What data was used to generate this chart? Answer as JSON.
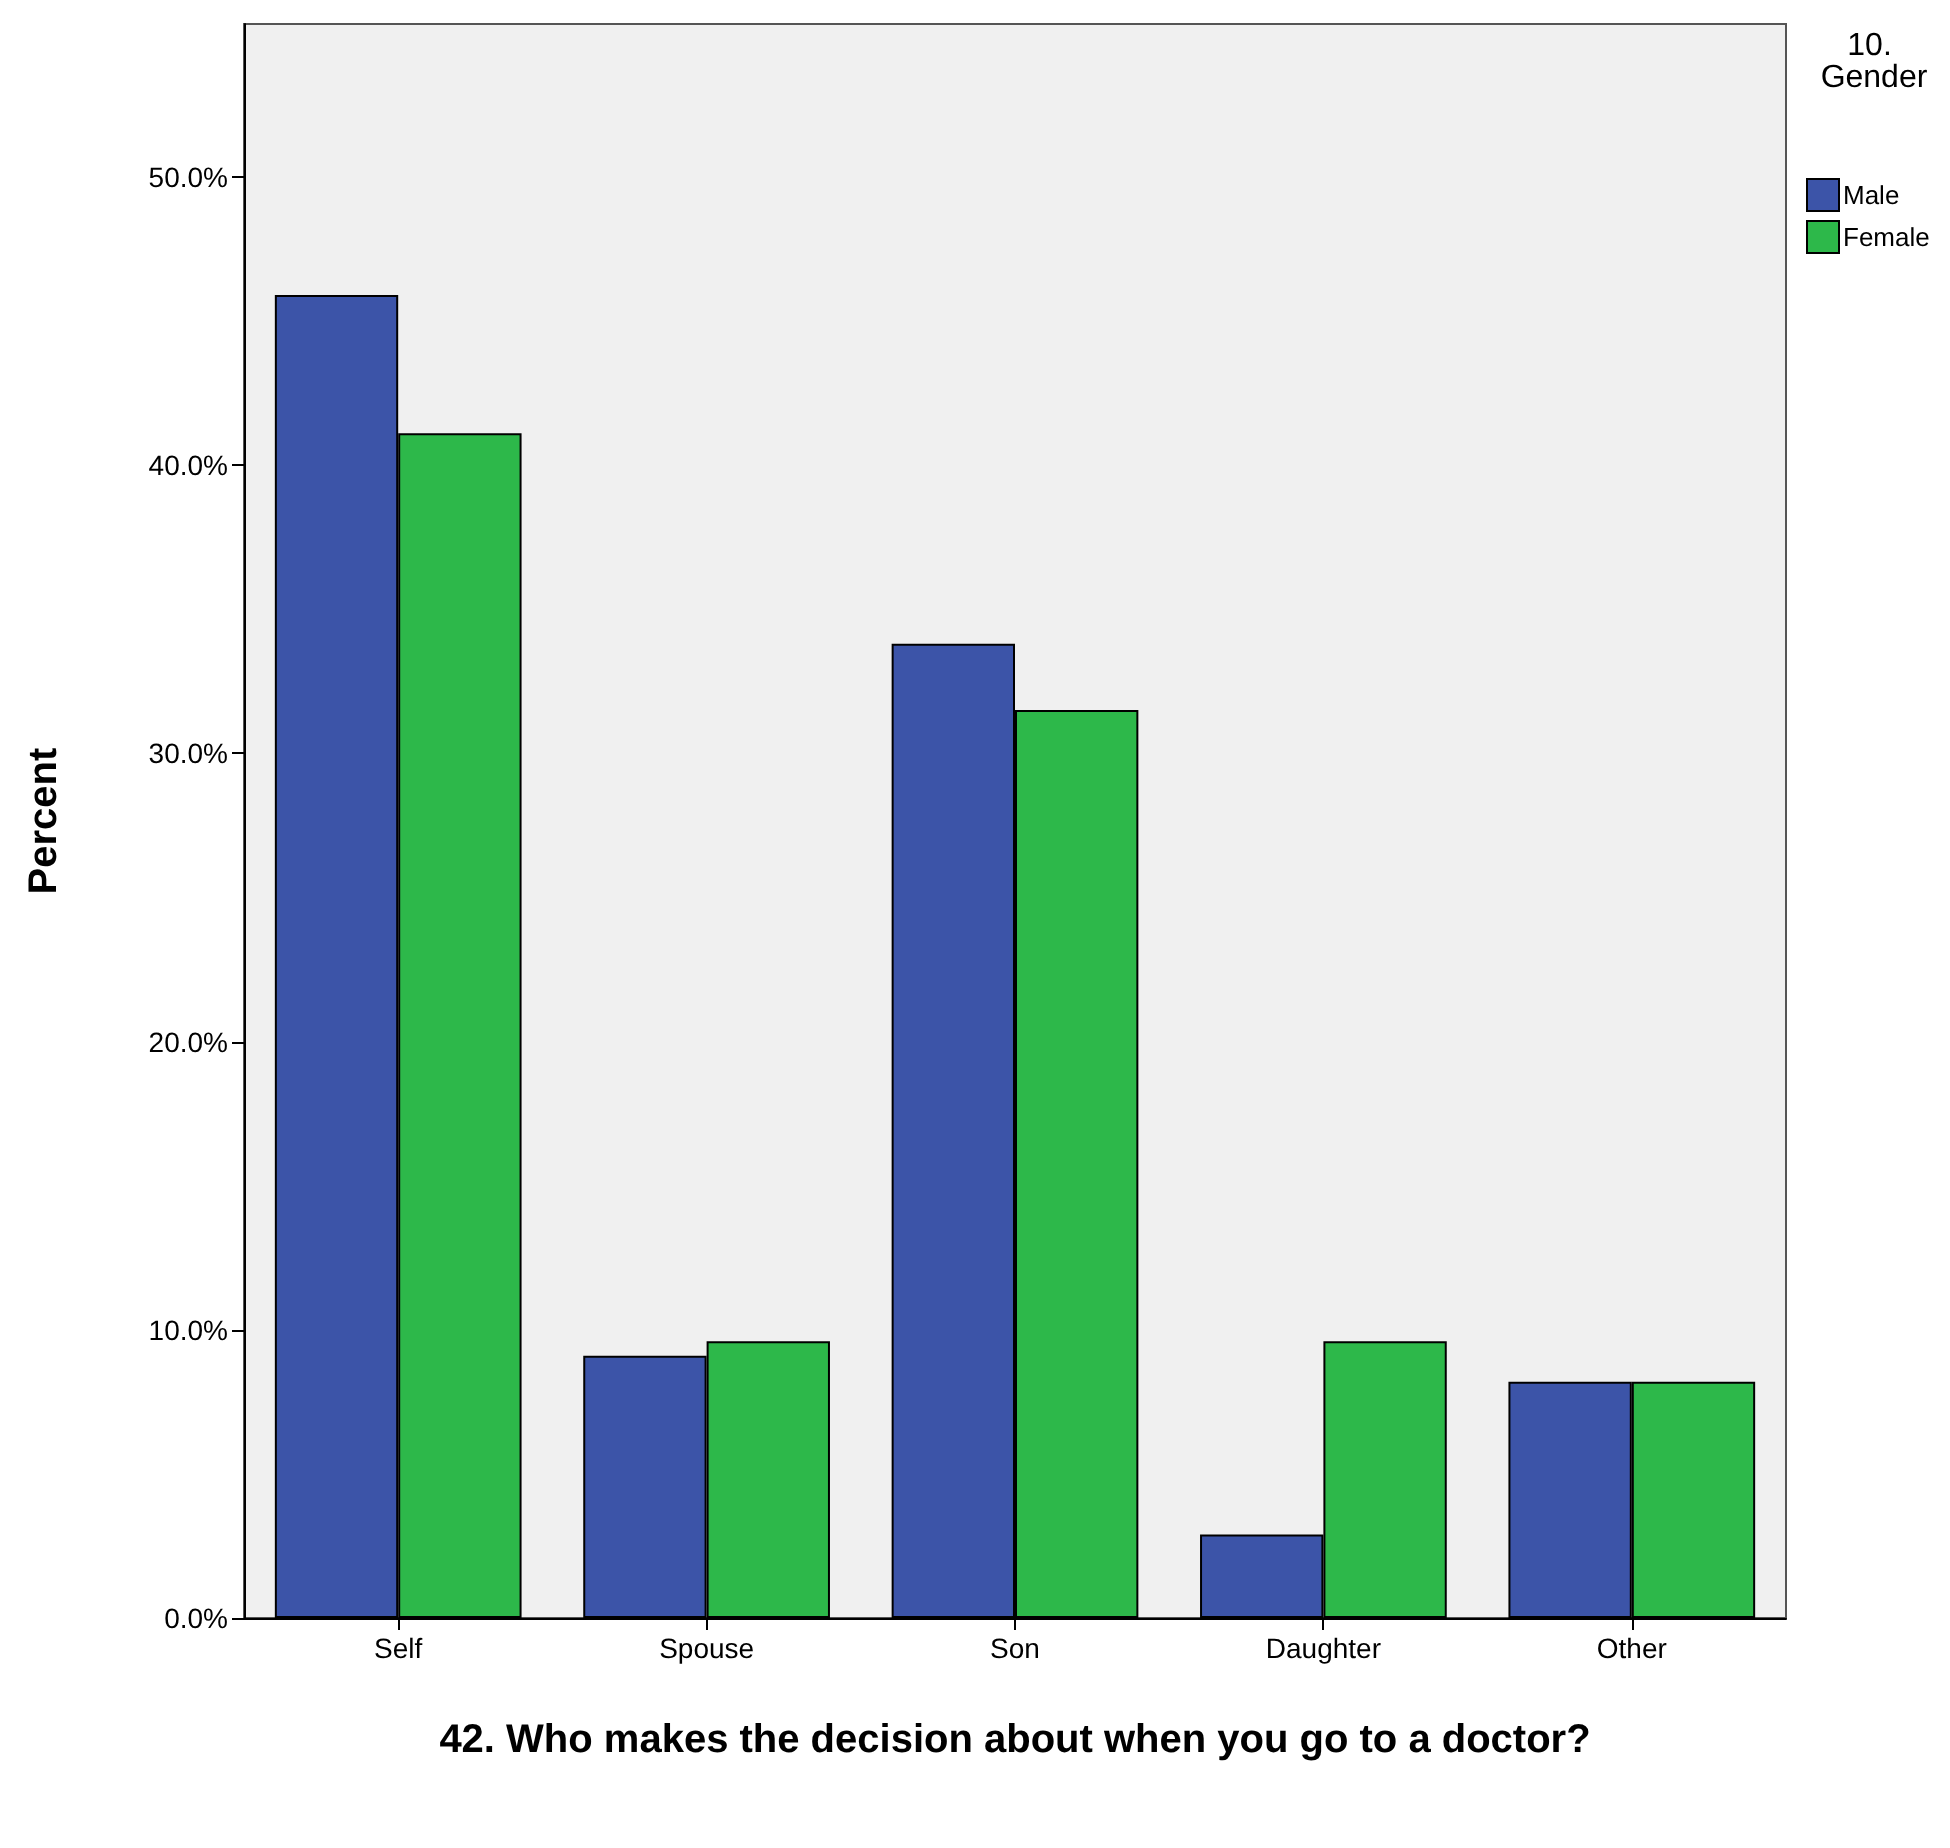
{
  "chart_data": {
    "type": "bar",
    "xlabel": "42. Who makes the decision about when you go to a doctor?",
    "ylabel": "Percent",
    "legend_title": "10. Gender",
    "categories": [
      "Self",
      "Spouse",
      "Son",
      "Daughter",
      "Other"
    ],
    "series": [
      {
        "name": "Male",
        "color": "#3c54a8",
        "values": [
          45.9,
          9.1,
          33.8,
          2.9,
          8.2
        ]
      },
      {
        "name": "Female",
        "color": "#2db84a",
        "values": [
          41.1,
          9.6,
          31.5,
          9.6,
          8.2
        ]
      }
    ],
    "ylim": [
      0,
      55.3
    ],
    "yticks": [
      {
        "value": 0,
        "label": "0.0%"
      },
      {
        "value": 10,
        "label": "10.0%"
      },
      {
        "value": 20,
        "label": "20.0%"
      },
      {
        "value": 30,
        "label": "30.0%"
      },
      {
        "value": 40,
        "label": "40.0%"
      },
      {
        "value": 50,
        "label": "50.0%"
      }
    ],
    "grid": false,
    "legend": "top right"
  }
}
